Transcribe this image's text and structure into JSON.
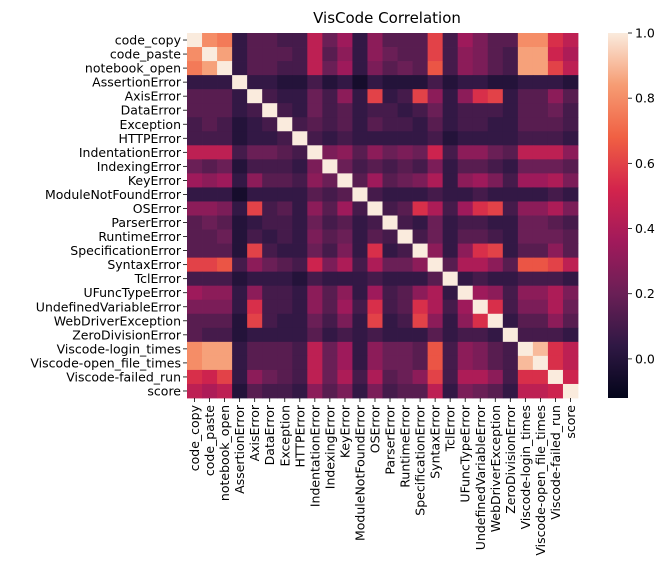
{
  "chart_data": {
    "type": "heatmap",
    "title": "VisCode Correlation",
    "xlabel": "",
    "ylabel": "",
    "labels": [
      "code_copy",
      "code_paste",
      "notebook_open",
      "AssertionError",
      "AxisError",
      "DataError",
      "Exception",
      "HTTPError",
      "IndentationError",
      "IndexingError",
      "KeyError",
      "ModuleNotFoundError",
      "OSError",
      "ParserError",
      "RuntimeError",
      "SpecificationError",
      "SyntaxError",
      "TclError",
      "UFuncTypeError",
      "UndefinedVariableError",
      "WebDriverException",
      "ZeroDivisionError",
      "Viscode-login_times",
      "Viscode-open_file_times",
      "Viscode-failed_run",
      "score"
    ],
    "row_tick_labels": [
      "code_copy",
      "code_paste",
      "notebook_open",
      "AssertionError",
      "AxisError",
      "DataError",
      "Exception",
      "HTTPError",
      "IndentationError",
      "IndexingError",
      "KeyError",
      "ModuleNotFoundError",
      "OSError",
      "ParserError",
      "RuntimeError",
      "SpecificationError",
      "SyntaxError",
      "TclError",
      "UFuncTypeError",
      "UndefinedVariableError",
      "WebDriverException",
      "ZeroDivisionError",
      "Viscode-login_times",
      "Viscode-open_file_times",
      "Viscode-failed_run",
      "score"
    ],
    "col_tick_labels": [
      "code_copy",
      "code_paste",
      "notebook_open",
      "AssertionError",
      "AxisError",
      "DataError",
      "Exception",
      "HTTPError",
      "IndentationError",
      "IndexingError",
      "KeyError",
      "ModuleNotFoundError",
      "OSError",
      "ParserError",
      "RuntimeError",
      "SpecificationError",
      "SyntaxError",
      "TclError",
      "UFuncTypeError",
      "UndefinedVariableError",
      "WebDriverException",
      "ZeroDivisionError",
      "Viscode-login_times",
      "Viscode-open_file_times",
      "Viscode-failed_run",
      "score"
    ],
    "matrix": [
      [
        1.0,
        0.8,
        0.75,
        0.05,
        0.15,
        0.15,
        0.1,
        0.1,
        0.45,
        0.2,
        0.35,
        0.05,
        0.3,
        0.15,
        0.15,
        0.15,
        0.6,
        0.1,
        0.35,
        0.25,
        0.15,
        0.15,
        0.8,
        0.8,
        0.55,
        0.45
      ],
      [
        0.8,
        1.0,
        0.85,
        0.05,
        0.15,
        0.15,
        0.15,
        0.1,
        0.45,
        0.15,
        0.3,
        0.05,
        0.3,
        0.2,
        0.15,
        0.15,
        0.6,
        0.1,
        0.3,
        0.25,
        0.15,
        0.1,
        0.85,
        0.85,
        0.5,
        0.4
      ],
      [
        0.75,
        0.85,
        1.0,
        0.05,
        0.15,
        0.15,
        0.1,
        0.1,
        0.45,
        0.2,
        0.35,
        0.05,
        0.25,
        0.15,
        0.2,
        0.15,
        0.65,
        0.1,
        0.3,
        0.25,
        0.15,
        0.1,
        0.85,
        0.85,
        0.6,
        0.45
      ],
      [
        0.05,
        0.05,
        0.05,
        1.0,
        0.05,
        0.05,
        0.0,
        0.0,
        0.1,
        0.0,
        0.05,
        -0.05,
        0.05,
        0.0,
        0.0,
        0.0,
        0.1,
        0.0,
        0.05,
        0.05,
        0.0,
        0.0,
        0.05,
        0.05,
        0.05,
        0.0
      ],
      [
        0.15,
        0.15,
        0.15,
        0.05,
        1.0,
        0.1,
        0.05,
        0.05,
        0.2,
        0.1,
        0.3,
        0.05,
        0.6,
        0.05,
        0.1,
        0.6,
        0.3,
        0.05,
        0.3,
        0.55,
        0.6,
        0.05,
        0.15,
        0.15,
        0.3,
        0.15
      ],
      [
        0.15,
        0.15,
        0.15,
        0.05,
        0.1,
        1.0,
        0.1,
        0.05,
        0.2,
        0.1,
        0.15,
        0.05,
        0.1,
        0.1,
        0.05,
        0.1,
        0.2,
        0.05,
        0.1,
        0.1,
        0.1,
        0.05,
        0.15,
        0.15,
        0.2,
        0.1
      ],
      [
        0.1,
        0.15,
        0.1,
        0.0,
        0.05,
        0.1,
        1.0,
        0.1,
        0.15,
        0.1,
        0.15,
        0.05,
        0.15,
        0.1,
        0.1,
        0.05,
        0.15,
        0.05,
        0.1,
        0.1,
        0.05,
        0.05,
        0.15,
        0.15,
        0.15,
        0.1
      ],
      [
        0.1,
        0.1,
        0.1,
        0.0,
        0.05,
        0.05,
        0.1,
        1.0,
        0.1,
        0.05,
        0.1,
        0.05,
        0.05,
        0.05,
        0.05,
        0.05,
        0.1,
        0.0,
        0.05,
        0.05,
        0.05,
        0.05,
        0.1,
        0.1,
        0.1,
        0.05
      ],
      [
        0.45,
        0.45,
        0.45,
        0.1,
        0.2,
        0.2,
        0.15,
        0.1,
        1.0,
        0.25,
        0.3,
        0.15,
        0.3,
        0.2,
        0.25,
        0.2,
        0.5,
        0.1,
        0.3,
        0.3,
        0.2,
        0.15,
        0.45,
        0.45,
        0.45,
        0.3
      ],
      [
        0.2,
        0.15,
        0.2,
        0.0,
        0.1,
        0.1,
        0.1,
        0.05,
        0.25,
        1.0,
        0.2,
        0.1,
        0.15,
        0.1,
        0.15,
        0.1,
        0.25,
        0.05,
        0.15,
        0.15,
        0.1,
        0.05,
        0.2,
        0.2,
        0.2,
        0.15
      ],
      [
        0.35,
        0.3,
        0.35,
        0.05,
        0.3,
        0.15,
        0.15,
        0.1,
        0.3,
        0.2,
        1.0,
        0.15,
        0.35,
        0.15,
        0.2,
        0.25,
        0.4,
        0.05,
        0.3,
        0.35,
        0.25,
        0.1,
        0.35,
        0.35,
        0.4,
        0.25
      ],
      [
        0.05,
        0.05,
        0.05,
        -0.05,
        0.05,
        0.05,
        0.05,
        0.05,
        0.15,
        0.1,
        0.15,
        1.0,
        0.1,
        0.05,
        0.05,
        0.05,
        0.1,
        0.05,
        0.05,
        0.1,
        0.05,
        0.05,
        0.05,
        0.05,
        0.1,
        0.05
      ],
      [
        0.3,
        0.3,
        0.25,
        0.05,
        0.6,
        0.1,
        0.15,
        0.05,
        0.3,
        0.15,
        0.35,
        0.1,
        1.0,
        0.1,
        0.15,
        0.55,
        0.4,
        0.1,
        0.35,
        0.55,
        0.6,
        0.1,
        0.3,
        0.3,
        0.4,
        0.25
      ],
      [
        0.15,
        0.2,
        0.15,
        0.0,
        0.05,
        0.1,
        0.1,
        0.05,
        0.2,
        0.1,
        0.15,
        0.05,
        0.1,
        1.0,
        0.1,
        0.05,
        0.2,
        0.05,
        0.1,
        0.1,
        0.05,
        0.05,
        0.2,
        0.2,
        0.15,
        0.1
      ],
      [
        0.15,
        0.15,
        0.2,
        0.0,
        0.1,
        0.05,
        0.1,
        0.05,
        0.25,
        0.15,
        0.2,
        0.05,
        0.15,
        0.1,
        1.0,
        0.1,
        0.2,
        0.05,
        0.15,
        0.15,
        0.1,
        0.05,
        0.2,
        0.2,
        0.2,
        0.15
      ],
      [
        0.15,
        0.15,
        0.15,
        0.0,
        0.6,
        0.1,
        0.05,
        0.05,
        0.2,
        0.1,
        0.25,
        0.05,
        0.55,
        0.05,
        0.1,
        1.0,
        0.3,
        0.05,
        0.3,
        0.55,
        0.6,
        0.05,
        0.15,
        0.15,
        0.3,
        0.15
      ],
      [
        0.6,
        0.6,
        0.65,
        0.1,
        0.3,
        0.2,
        0.15,
        0.1,
        0.5,
        0.25,
        0.4,
        0.1,
        0.4,
        0.2,
        0.2,
        0.3,
        1.0,
        0.15,
        0.4,
        0.4,
        0.3,
        0.15,
        0.65,
        0.65,
        0.6,
        0.45
      ],
      [
        0.1,
        0.1,
        0.1,
        0.0,
        0.05,
        0.05,
        0.05,
        0.0,
        0.1,
        0.05,
        0.05,
        0.05,
        0.1,
        0.05,
        0.05,
        0.05,
        0.15,
        1.0,
        0.05,
        0.1,
        0.05,
        0.05,
        0.1,
        0.1,
        0.1,
        0.05
      ],
      [
        0.35,
        0.3,
        0.3,
        0.05,
        0.3,
        0.1,
        0.1,
        0.05,
        0.3,
        0.15,
        0.3,
        0.05,
        0.35,
        0.1,
        0.15,
        0.3,
        0.4,
        0.05,
        1.0,
        0.35,
        0.3,
        0.1,
        0.3,
        0.3,
        0.4,
        0.25
      ],
      [
        0.25,
        0.25,
        0.25,
        0.05,
        0.55,
        0.1,
        0.1,
        0.05,
        0.3,
        0.15,
        0.35,
        0.1,
        0.55,
        0.1,
        0.15,
        0.55,
        0.4,
        0.1,
        0.35,
        1.0,
        0.55,
        0.1,
        0.25,
        0.25,
        0.4,
        0.2
      ],
      [
        0.15,
        0.15,
        0.15,
        0.0,
        0.6,
        0.1,
        0.05,
        0.05,
        0.2,
        0.1,
        0.25,
        0.05,
        0.6,
        0.05,
        0.1,
        0.6,
        0.3,
        0.05,
        0.3,
        0.55,
        1.0,
        0.05,
        0.15,
        0.15,
        0.3,
        0.15
      ],
      [
        0.15,
        0.1,
        0.1,
        0.0,
        0.05,
        0.05,
        0.05,
        0.05,
        0.15,
        0.05,
        0.1,
        0.05,
        0.1,
        0.05,
        0.05,
        0.05,
        0.15,
        0.05,
        0.1,
        0.1,
        0.05,
        1.0,
        0.1,
        0.1,
        0.1,
        0.05
      ],
      [
        0.8,
        0.85,
        0.85,
        0.05,
        0.15,
        0.15,
        0.15,
        0.1,
        0.45,
        0.2,
        0.35,
        0.05,
        0.3,
        0.2,
        0.2,
        0.15,
        0.65,
        0.1,
        0.3,
        0.25,
        0.15,
        0.1,
        1.0,
        0.9,
        0.55,
        0.45
      ],
      [
        0.8,
        0.85,
        0.85,
        0.05,
        0.15,
        0.15,
        0.15,
        0.1,
        0.45,
        0.2,
        0.35,
        0.05,
        0.3,
        0.2,
        0.2,
        0.15,
        0.65,
        0.1,
        0.3,
        0.25,
        0.15,
        0.1,
        0.9,
        1.0,
        0.55,
        0.45
      ],
      [
        0.55,
        0.5,
        0.6,
        0.05,
        0.3,
        0.2,
        0.15,
        0.1,
        0.45,
        0.2,
        0.4,
        0.1,
        0.4,
        0.15,
        0.2,
        0.3,
        0.6,
        0.1,
        0.4,
        0.4,
        0.3,
        0.1,
        0.55,
        0.55,
        1.0,
        0.5
      ],
      [
        0.45,
        0.4,
        0.45,
        0.0,
        0.15,
        0.1,
        0.1,
        0.05,
        0.3,
        0.15,
        0.25,
        0.05,
        0.25,
        0.1,
        0.15,
        0.15,
        0.45,
        0.05,
        0.25,
        0.2,
        0.15,
        0.05,
        0.45,
        0.45,
        0.5,
        1.0
      ]
    ],
    "vmin": -0.12,
    "vmax": 1.0,
    "colorbar_ticks": [
      0.0,
      0.2,
      0.4,
      0.6,
      0.8,
      1.0
    ],
    "colorbar_tick_labels": [
      "0.0",
      "0.2",
      "0.4",
      "0.6",
      "0.8",
      "1.0"
    ],
    "colormap": "rocket",
    "colormap_stops": [
      "#03051a",
      "#2f1844",
      "#6a1f56",
      "#a11a5b",
      "#d3244c",
      "#f06043",
      "#f69c73",
      "#faebdd"
    ]
  }
}
